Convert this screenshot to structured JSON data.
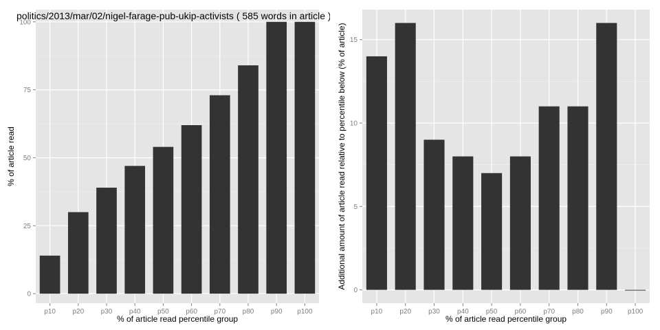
{
  "chart_data": [
    {
      "type": "bar",
      "title": "politics/2013/mar/02/nigel-farage-pub-ukip-activists ( 585 words in article )",
      "xlabel": "% of article read percentile group",
      "ylabel": "% of article read",
      "categories": [
        "p10",
        "p20",
        "p30",
        "p40",
        "p50",
        "p60",
        "p70",
        "p80",
        "p90",
        "p100"
      ],
      "values": [
        14,
        30,
        39,
        47,
        54,
        62,
        73,
        84,
        100,
        100
      ],
      "ylim": [
        -3.5,
        104.5
      ],
      "yticks": [
        0,
        25,
        50,
        75,
        100
      ],
      "grid": true,
      "bar_color": "#333333",
      "panel_color": "#e5e5e5"
    },
    {
      "type": "bar",
      "title": "",
      "xlabel": "% of article read percentile group",
      "ylabel": "Additional amount of article read relative to percentile below (% of article)",
      "categories": [
        "p10",
        "p20",
        "p30",
        "p40",
        "p50",
        "p60",
        "p70",
        "p80",
        "p90",
        "p100"
      ],
      "values": [
        14,
        16,
        9,
        8,
        7,
        8,
        11,
        11,
        16,
        0
      ],
      "ylim": [
        -0.8,
        16.8
      ],
      "yticks": [
        0,
        5,
        10,
        15
      ],
      "grid": true,
      "bar_color": "#333333",
      "panel_color": "#e5e5e5"
    }
  ]
}
